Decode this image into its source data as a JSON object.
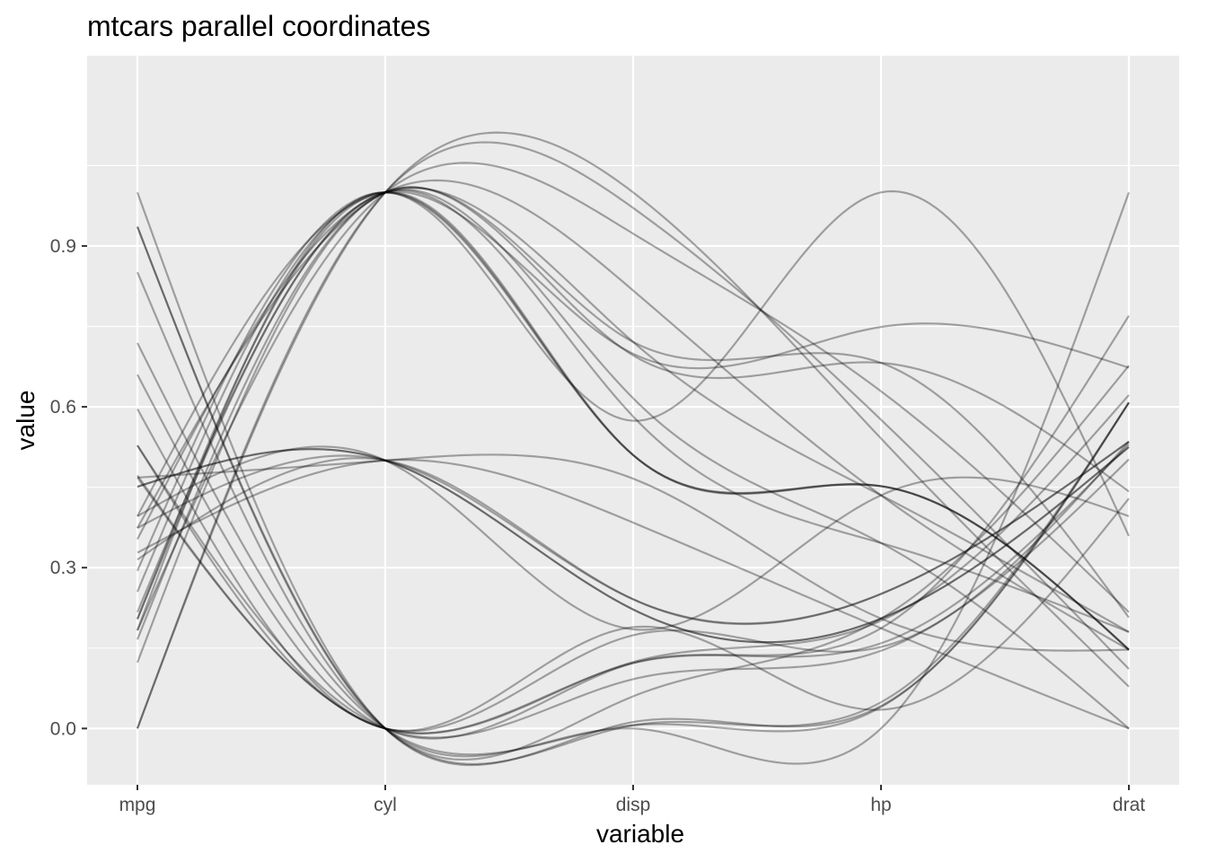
{
  "chart_data": {
    "type": "line",
    "title": "mtcars parallel coordinates",
    "xlabel": "variable",
    "ylabel": "value",
    "categories": [
      "mpg",
      "cyl",
      "disp",
      "hp",
      "drat"
    ],
    "y_ticks": [
      0.0,
      0.3,
      0.6,
      0.9
    ],
    "y_tick_labels": [
      "0.0",
      "0.3",
      "0.6",
      "0.9"
    ],
    "ylim": [
      -0.105,
      1.255
    ],
    "grid": true,
    "legend": "none",
    "series": [
      {
        "values": [
          0.451,
          0.5,
          0.222,
          0.205,
          0.525
        ]
      },
      {
        "values": [
          0.451,
          0.5,
          0.222,
          0.205,
          0.525
        ]
      },
      {
        "values": [
          0.528,
          0.0,
          0.092,
          0.145,
          0.502
        ]
      },
      {
        "values": [
          0.468,
          0.5,
          0.466,
          0.205,
          0.147
        ]
      },
      {
        "values": [
          0.353,
          1.0,
          0.721,
          0.435,
          0.18
        ]
      },
      {
        "values": [
          0.328,
          0.5,
          0.384,
          0.187,
          0.0
        ]
      },
      {
        "values": [
          0.166,
          1.0,
          0.721,
          0.682,
          0.207
        ]
      },
      {
        "values": [
          0.596,
          0.0,
          0.189,
          0.035,
          0.429
        ]
      },
      {
        "values": [
          0.528,
          0.0,
          0.174,
          0.152,
          0.535
        ]
      },
      {
        "values": [
          0.374,
          0.5,
          0.241,
          0.251,
          0.535
        ]
      },
      {
        "values": [
          0.315,
          0.5,
          0.241,
          0.251,
          0.535
        ]
      },
      {
        "values": [
          0.255,
          1.0,
          0.51,
          0.452,
          0.147
        ]
      },
      {
        "values": [
          0.294,
          1.0,
          0.51,
          0.452,
          0.147
        ]
      },
      {
        "values": [
          0.204,
          1.0,
          0.51,
          0.452,
          0.147
        ]
      },
      {
        "values": [
          0.0,
          1.0,
          1.0,
          0.541,
          0.078
        ]
      },
      {
        "values": [
          0.0,
          1.0,
          0.971,
          0.576,
          0.111
        ]
      },
      {
        "values": [
          0.183,
          1.0,
          0.923,
          0.629,
          0.217
        ]
      },
      {
        "values": [
          0.936,
          0.0,
          0.006,
          0.049,
          0.608
        ]
      },
      {
        "values": [
          0.851,
          0.0,
          0.0,
          0.0,
          1.0
        ]
      },
      {
        "values": [
          1.0,
          0.0,
          0.012,
          0.042,
          0.608
        ]
      },
      {
        "values": [
          0.472,
          0.0,
          0.122,
          0.159,
          0.53
        ]
      },
      {
        "values": [
          0.217,
          1.0,
          0.616,
          0.346,
          0.0
        ]
      },
      {
        "values": [
          0.204,
          1.0,
          0.582,
          0.346,
          0.18
        ]
      },
      {
        "values": [
          0.123,
          1.0,
          0.696,
          0.682,
          0.442
        ]
      },
      {
        "values": [
          0.374,
          1.0,
          0.817,
          0.435,
          0.147
        ]
      },
      {
        "values": [
          0.719,
          0.0,
          0.006,
          0.04,
          0.608
        ]
      },
      {
        "values": [
          0.66,
          0.0,
          0.122,
          0.187,
          0.77
        ]
      },
      {
        "values": [
          0.936,
          0.0,
          0.06,
          0.205,
          0.677
        ]
      },
      {
        "values": [
          0.396,
          1.0,
          0.699,
          0.749,
          0.673
        ]
      },
      {
        "values": [
          0.396,
          0.5,
          0.185,
          0.435,
          0.396
        ]
      },
      {
        "values": [
          0.183,
          1.0,
          0.574,
          1.0,
          0.359
        ]
      },
      {
        "values": [
          0.468,
          0.0,
          0.124,
          0.201,
          0.622
        ]
      }
    ]
  }
}
